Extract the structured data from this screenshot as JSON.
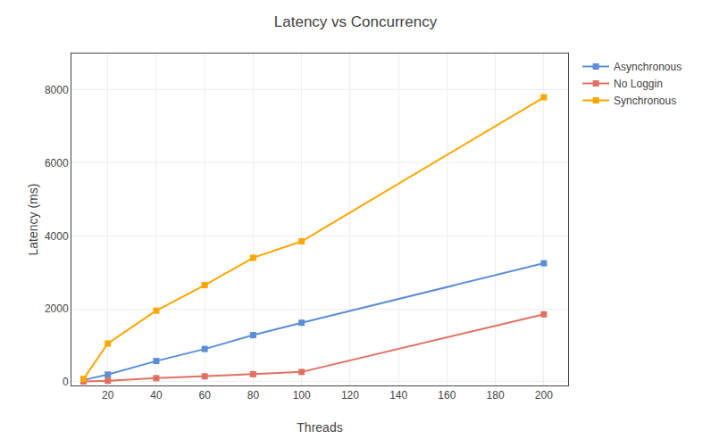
{
  "chart_data": {
    "type": "line",
    "title": "Latency vs Concurrency",
    "xlabel": "Threads",
    "ylabel": "Latency (ms)",
    "x": [
      10,
      20,
      40,
      60,
      80,
      100,
      200
    ],
    "series": [
      {
        "name": "Asynchronous",
        "color": "#5B8ED6",
        "marker": "square",
        "values": [
          50,
          200,
          570,
          900,
          1280,
          1620,
          3250
        ]
      },
      {
        "name": "No Loggin",
        "color": "#E07060",
        "marker": "square",
        "values": [
          10,
          30,
          100,
          150,
          210,
          270,
          1850
        ]
      },
      {
        "name": "Synchronous",
        "color": "#FFA500",
        "marker": "square",
        "values": [
          80,
          1050,
          1950,
          2650,
          3400,
          3850,
          7800
        ]
      }
    ],
    "xlim": [
      5,
      210
    ],
    "ylim": [
      -100,
      9000
    ],
    "xticks": [
      20,
      40,
      60,
      80,
      100,
      120,
      140,
      160,
      180,
      200
    ],
    "yticks": [
      0,
      2000,
      4000,
      6000,
      8000
    ],
    "grid": true,
    "legend": "upper right"
  }
}
